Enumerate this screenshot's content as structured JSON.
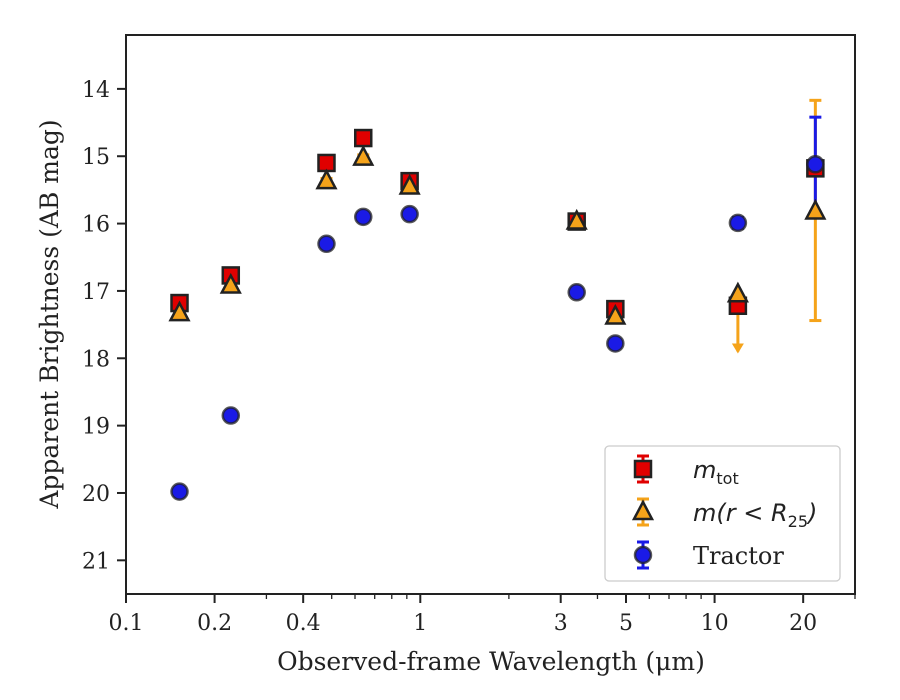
{
  "chart_data": {
    "type": "scatter",
    "title": "",
    "xlabel": "Observed-frame Wavelength (μm)",
    "ylabel": "Apparent Brightness (AB mag)",
    "xscale": "log",
    "yinverted": true,
    "xlim": [
      0.1,
      30
    ],
    "ylim": [
      21.5,
      13.2
    ],
    "xticks": [
      {
        "value": 0.1,
        "label": "0.1"
      },
      {
        "value": 0.2,
        "label": "0.2"
      },
      {
        "value": 0.4,
        "label": "0.4"
      },
      {
        "value": 1,
        "label": "1"
      },
      {
        "value": 3,
        "label": "3"
      },
      {
        "value": 5,
        "label": "5"
      },
      {
        "value": 10,
        "label": "10"
      },
      {
        "value": 20,
        "label": "20"
      }
    ],
    "yticks": [
      {
        "value": 14,
        "label": "14"
      },
      {
        "value": 15,
        "label": "15"
      },
      {
        "value": 16,
        "label": "16"
      },
      {
        "value": 17,
        "label": "17"
      },
      {
        "value": 18,
        "label": "18"
      },
      {
        "value": 19,
        "label": "19"
      },
      {
        "value": 20,
        "label": "20"
      },
      {
        "value": 21,
        "label": "21"
      }
    ],
    "legend_position": "lower-right",
    "series": [
      {
        "name": "m_tot",
        "label_main": "m",
        "label_sub": "tot",
        "marker": "square",
        "color": "#e00000",
        "errcolor": "#e00000",
        "points": [
          {
            "x": 0.152,
            "y": 17.18,
            "err": 0.05
          },
          {
            "x": 0.227,
            "y": 16.77,
            "err": 0.05
          },
          {
            "x": 0.48,
            "y": 15.1,
            "err": 0.04
          },
          {
            "x": 0.64,
            "y": 14.73,
            "err": 0.04
          },
          {
            "x": 0.92,
            "y": 15.37,
            "err": 0.04
          },
          {
            "x": 3.4,
            "y": 15.97,
            "err": 0.04
          },
          {
            "x": 4.6,
            "y": 17.27,
            "err": 0.06
          },
          {
            "x": 12.0,
            "y": 17.22,
            "err": 0.05
          },
          {
            "x": 22.0,
            "y": 15.18,
            "err": 0.06
          }
        ]
      },
      {
        "name": "m(r < R25)",
        "label_main": "m(r < R",
        "label_sub": "25",
        "label_end": ")",
        "marker": "triangle",
        "color": "#f5a31a",
        "errcolor": "#f5a31a",
        "points": [
          {
            "x": 0.152,
            "y": 17.33,
            "err": 0.04
          },
          {
            "x": 0.227,
            "y": 16.92,
            "err": 0.04
          },
          {
            "x": 0.48,
            "y": 15.37,
            "err": 0.04
          },
          {
            "x": 0.64,
            "y": 15.02,
            "err": 0.04
          },
          {
            "x": 0.92,
            "y": 15.45,
            "err": 0.04
          },
          {
            "x": 3.4,
            "y": 15.97,
            "err": 0.04
          },
          {
            "x": 4.6,
            "y": 17.38,
            "err": 0.06
          },
          {
            "x": 12.0,
            "y": 17.05,
            "err": 0.08,
            "upper_limit_to": 17.9
          },
          {
            "x": 22.0,
            "y": 15.82,
            "err_low": 1.62,
            "err_high": 1.65
          }
        ]
      },
      {
        "name": "Tractor",
        "label_main": "Tractor",
        "marker": "circle",
        "color": "#1a1ae6",
        "errcolor": "#1a1ae6",
        "points": [
          {
            "x": 0.152,
            "y": 19.98,
            "err": 0.05
          },
          {
            "x": 0.227,
            "y": 18.85,
            "err": 0.05
          },
          {
            "x": 0.48,
            "y": 16.3,
            "err": 0.04
          },
          {
            "x": 0.64,
            "y": 15.9,
            "err": 0.04
          },
          {
            "x": 0.92,
            "y": 15.86,
            "err": 0.04
          },
          {
            "x": 3.4,
            "y": 17.02,
            "err": 0.04
          },
          {
            "x": 4.6,
            "y": 17.78,
            "err": 0.06
          },
          {
            "x": 12.0,
            "y": 15.99,
            "err": 0.08
          },
          {
            "x": 22.0,
            "y": 15.12,
            "err": 0.7
          }
        ]
      }
    ]
  }
}
